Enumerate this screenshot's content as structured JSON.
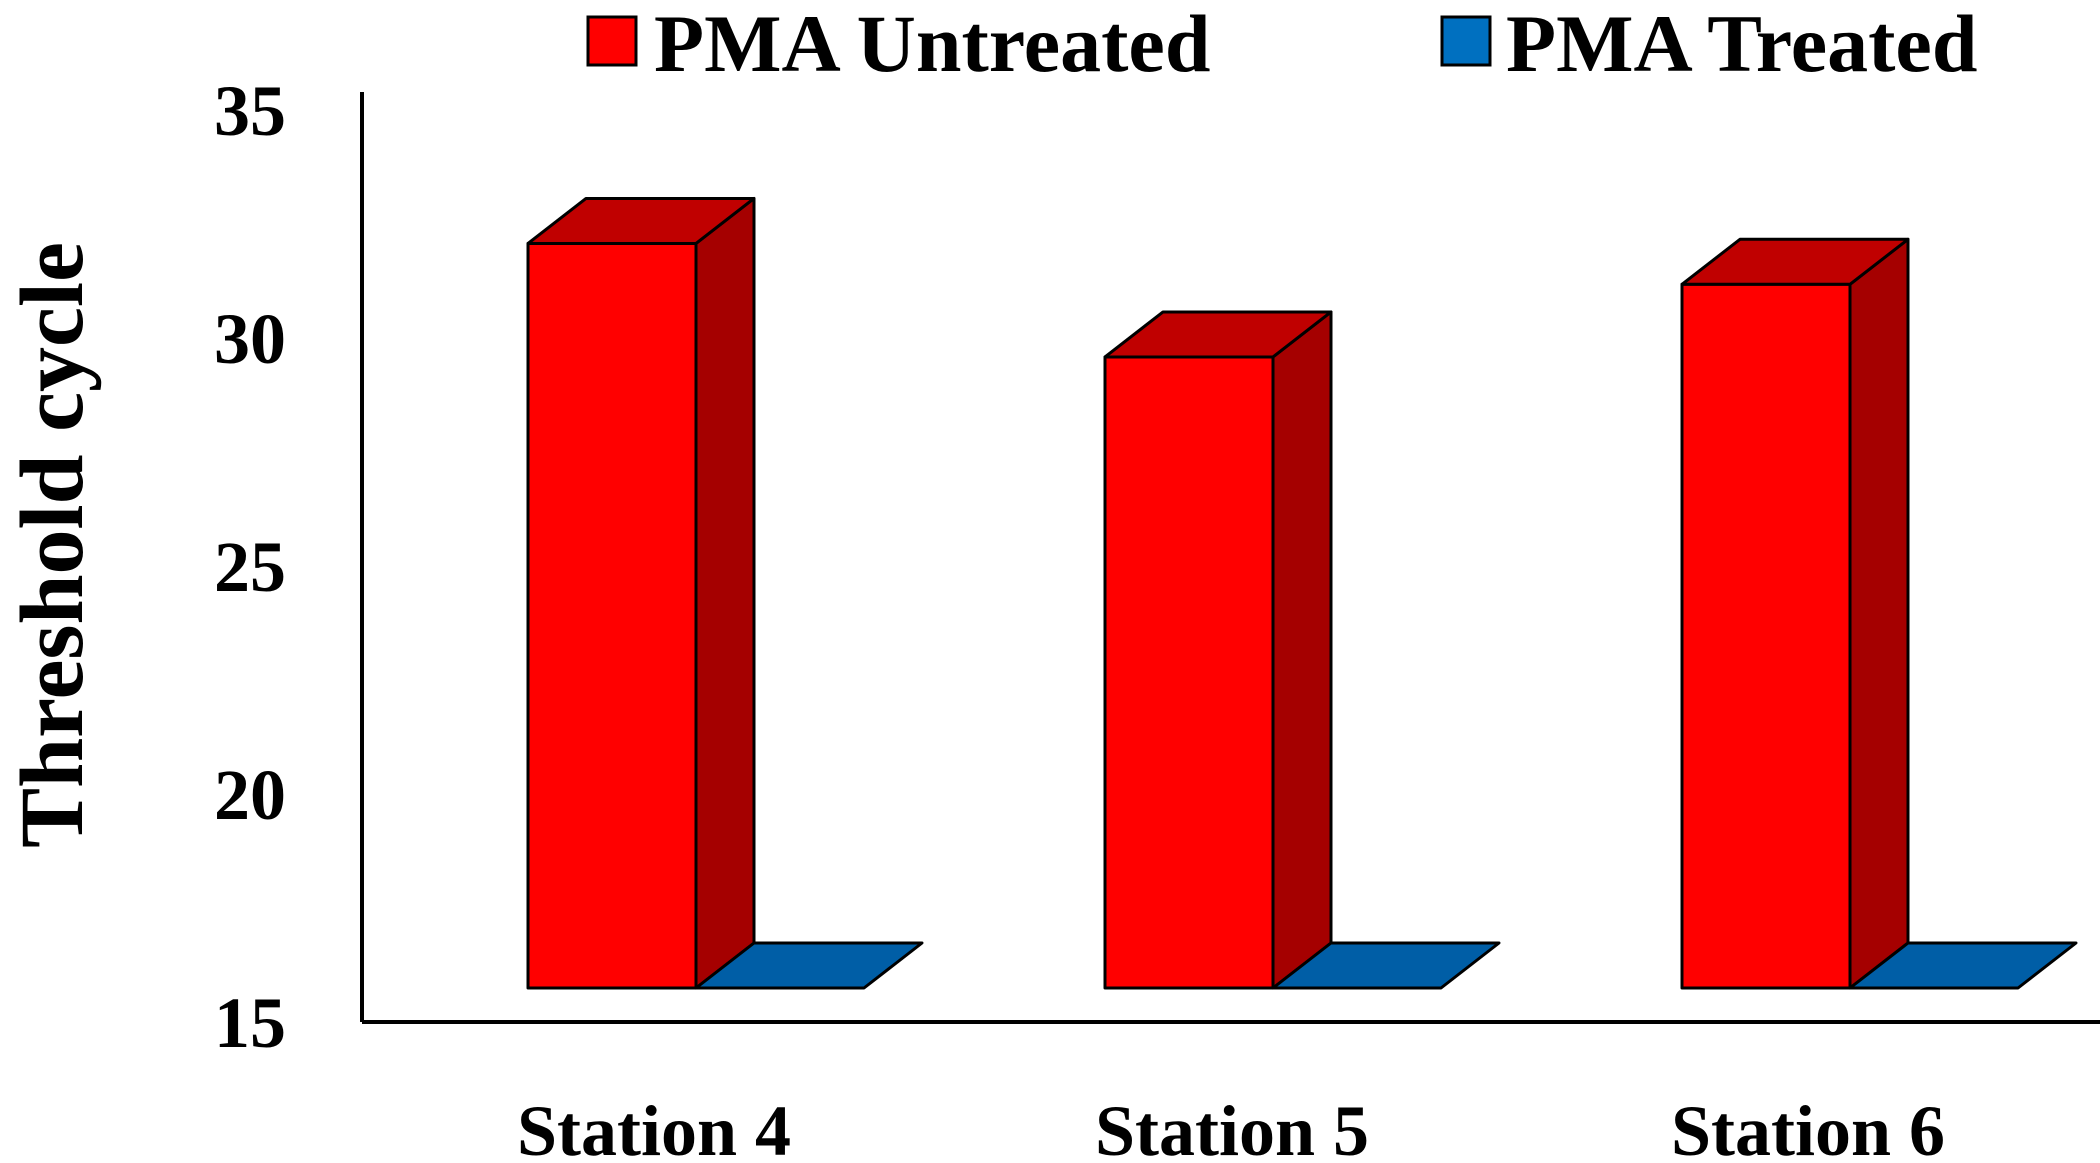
{
  "chart_data": {
    "type": "bar",
    "title": "",
    "xlabel": "",
    "ylabel": "Threshold cycle",
    "ylim": [
      15,
      35
    ],
    "yticks": [
      15,
      20,
      25,
      30,
      35
    ],
    "categories": [
      "Station 4",
      "Station 5",
      "Station 6"
    ],
    "series": [
      {
        "name": "PMA Untreated",
        "values": [
          31.4,
          28.9,
          30.5
        ],
        "color": "#ff0000",
        "side_color": "#a50000",
        "top_color": "#c00000"
      },
      {
        "name": "PMA Treated",
        "values": [
          15,
          15,
          15
        ],
        "color": "#0070c0",
        "side_color": "#004f8a",
        "top_color": "#005ea6"
      }
    ],
    "style": "3d-column",
    "grid": false,
    "legend_position": "top-right"
  }
}
